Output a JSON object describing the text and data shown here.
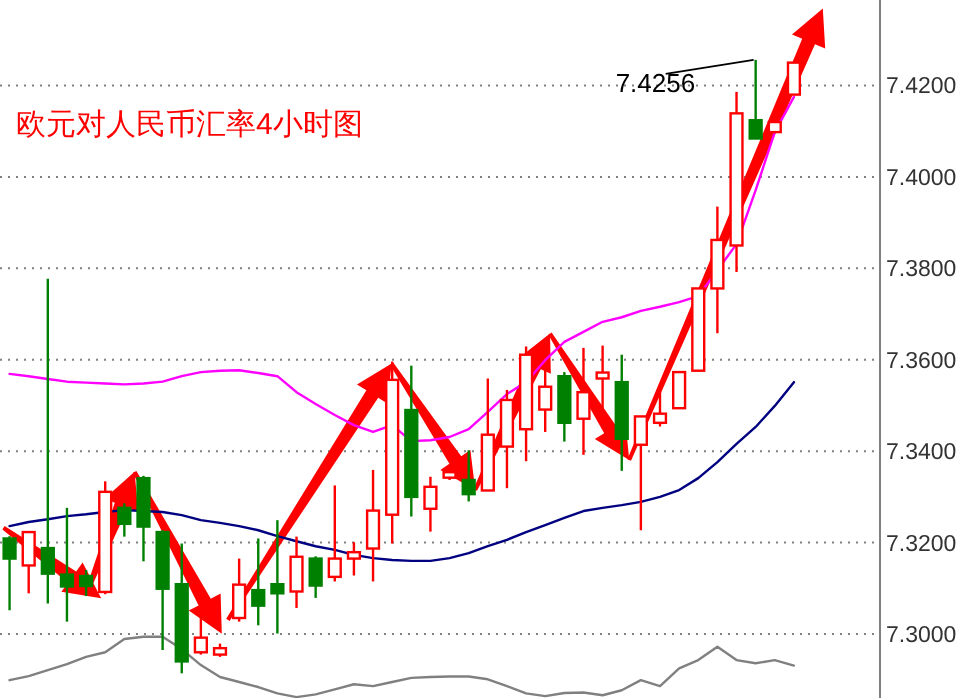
{
  "chart_data": {
    "type": "candlestick",
    "title": "欧元对人民币汇率4小时图",
    "categories": [
      null,
      null,
      null,
      null,
      null,
      null,
      null,
      null,
      null,
      null,
      null,
      null,
      null,
      null,
      null,
      null,
      null,
      null,
      null,
      null,
      null,
      null,
      null,
      null,
      null,
      null,
      null,
      null,
      null,
      null,
      null,
      null,
      null,
      null,
      null,
      null,
      null,
      null,
      null,
      null,
      null,
      null
    ],
    "ohlc": [
      [
        7.3209,
        7.3214,
        7.3052,
        7.3165
      ],
      [
        7.315,
        7.3223,
        7.3089,
        7.3223
      ],
      [
        7.3188,
        7.3777,
        7.3067,
        7.3132
      ],
      [
        7.313,
        7.3276,
        7.3027,
        7.3104
      ],
      [
        7.3127,
        7.314,
        7.3083,
        7.3105
      ],
      [
        7.3092,
        7.3334,
        7.3087,
        7.3311
      ],
      [
        7.3276,
        7.3286,
        7.3213,
        7.3241
      ],
      [
        7.3341,
        7.3346,
        7.3159,
        7.3235
      ],
      [
        7.3223,
        7.3227,
        7.2965,
        7.3099
      ],
      [
        7.3109,
        7.3198,
        7.2914,
        7.294
      ],
      [
        7.296,
        7.3041,
        7.2955,
        7.2992
      ],
      [
        7.2955,
        7.2979,
        7.295,
        7.2969
      ],
      [
        7.3035,
        7.3165,
        7.3027,
        7.3108
      ],
      [
        7.3096,
        7.3209,
        7.3019,
        7.3062
      ],
      [
        7.3109,
        7.3249,
        7.3001,
        7.3089
      ],
      [
        7.3093,
        7.3213,
        7.3057,
        7.3169
      ],
      [
        7.3165,
        7.317,
        7.3079,
        7.3106
      ],
      [
        7.3125,
        7.3325,
        7.3115,
        7.3165
      ],
      [
        7.3165,
        7.3201,
        7.3128,
        7.3179
      ],
      [
        7.3187,
        7.3359,
        7.3115,
        7.327
      ],
      [
        7.3261,
        7.3596,
        7.3198,
        7.3556
      ],
      [
        7.349,
        7.3587,
        7.3257,
        7.33
      ],
      [
        7.3274,
        7.3344,
        7.3224,
        7.3322
      ],
      [
        7.3342,
        7.3354,
        7.3337,
        7.3354
      ],
      [
        7.3337,
        7.3402,
        7.329,
        7.3306
      ],
      [
        7.3314,
        7.3559,
        7.3314,
        7.3436
      ],
      [
        7.341,
        7.3534,
        7.3319,
        7.3512
      ],
      [
        7.3448,
        7.3629,
        7.3378,
        7.3611
      ],
      [
        7.3491,
        7.3585,
        7.3442,
        7.3541
      ],
      [
        7.3564,
        7.3573,
        7.3421,
        7.3462
      ],
      [
        7.3471,
        7.3626,
        7.3392,
        7.3529
      ],
      [
        7.3559,
        7.3631,
        7.345,
        7.3572
      ],
      [
        7.3551,
        7.3611,
        7.3357,
        7.3427
      ],
      [
        7.3414,
        7.3476,
        7.3227,
        7.3476
      ],
      [
        7.3462,
        7.3541,
        7.3454,
        7.3482
      ],
      [
        7.3494,
        7.3573,
        7.3494,
        7.3573
      ],
      [
        7.3576,
        7.3757,
        7.3576,
        7.3756
      ],
      [
        7.3756,
        7.3935,
        7.3658,
        7.3862
      ],
      [
        7.385,
        7.4186,
        7.3792,
        7.4139
      ],
      [
        7.4124,
        7.4256,
        7.4083,
        7.4084
      ],
      [
        7.4098,
        7.4121,
        7.4097,
        7.412
      ],
      [
        7.418,
        7.425,
        7.418,
        7.425
      ]
    ],
    "colors": [
      "#008000",
      "#ff0000",
      "#008000",
      "#008000",
      "#008000",
      "#ff0000",
      "#008000",
      "#008000",
      "#008000",
      "#008000",
      "#ff0000",
      "#ff0000",
      "#ff0000",
      "#008000",
      "#008000",
      "#ff0000",
      "#008000",
      "#ff0000",
      "#ff0000",
      "#ff0000",
      "#ff0000",
      "#008000",
      "#ff0000",
      "#ff0000",
      "#008000",
      "#ff0000",
      "#ff0000",
      "#ff0000",
      "#ff0000",
      "#008000",
      "#ff0000",
      "#ff0000",
      "#008000",
      "#ff0000",
      "#ff0000",
      "#ff0000",
      "#ff0000",
      "#ff0000",
      "#ff0000",
      "#008000",
      "#ff0000",
      "#ff0000"
    ],
    "series": [
      {
        "type": "line",
        "color": "#ff00ff",
        "values": [
          7.3569,
          7.3564,
          7.3558,
          7.3552,
          7.355,
          7.3548,
          7.3546,
          7.3548,
          7.3552,
          7.3564,
          7.3573,
          7.3576,
          7.3577,
          7.3571,
          7.3564,
          7.3529,
          7.3503,
          7.3479,
          7.3457,
          7.3442,
          7.3457,
          7.3422,
          7.3424,
          7.3431,
          7.3448,
          7.3486,
          7.3525,
          7.3551,
          7.3599,
          7.3639,
          7.3661,
          7.3683,
          7.3693,
          7.3707,
          7.3716,
          7.3726,
          7.3739,
          7.3796,
          7.3853,
          7.3971,
          7.4098,
          7.4175
        ]
      },
      {
        "type": "line",
        "color": "#000080",
        "values": [
          7.3236,
          7.3245,
          7.3251,
          7.3258,
          7.3262,
          7.3267,
          7.3271,
          7.3269,
          7.3267,
          7.326,
          7.3249,
          7.3243,
          7.3236,
          7.3227,
          7.3214,
          7.3203,
          7.3192,
          7.3184,
          7.3173,
          7.3166,
          7.3162,
          7.316,
          7.316,
          7.3166,
          7.3177,
          7.3192,
          7.3206,
          7.3223,
          7.3238,
          7.3254,
          7.3269,
          7.3276,
          7.3282,
          7.3289,
          7.33,
          7.3315,
          7.3341,
          7.3376,
          7.3416,
          7.3453,
          7.3499,
          7.3551
        ]
      },
      {
        "type": "line",
        "color": "#808080",
        "values": [
          7.2899,
          7.2908,
          7.2921,
          7.2934,
          7.295,
          7.296,
          7.2989,
          7.2994,
          7.2994,
          7.2967,
          7.2932,
          7.2906,
          7.2895,
          7.2884,
          7.287,
          7.2862,
          7.2868,
          7.2879,
          7.289,
          7.2886,
          7.2895,
          7.2904,
          7.2906,
          7.2907,
          7.2907,
          7.2901,
          7.2886,
          7.287,
          7.2864,
          7.2871,
          7.2872,
          7.2866,
          7.2877,
          7.2899,
          7.2886,
          7.2925,
          7.2943,
          7.2972,
          7.2943,
          7.2936,
          7.2943,
          7.2931
        ]
      }
    ],
    "ylim": [
      7.286,
      7.4387
    ],
    "yticks": [
      {
        "value": 7.3,
        "label": "7.3000"
      },
      {
        "value": 7.32,
        "label": "7.3200"
      },
      {
        "value": 7.34,
        "label": "7.3400"
      },
      {
        "value": 7.36,
        "label": "7.3600"
      },
      {
        "value": 7.38,
        "label": "7.3800"
      },
      {
        "value": 7.4,
        "label": "7.4000"
      },
      {
        "value": 7.42,
        "label": "7.4200"
      }
    ],
    "grid": "y",
    "tick_labels": "y",
    "annotations": [
      "7.4256"
    ]
  }
}
